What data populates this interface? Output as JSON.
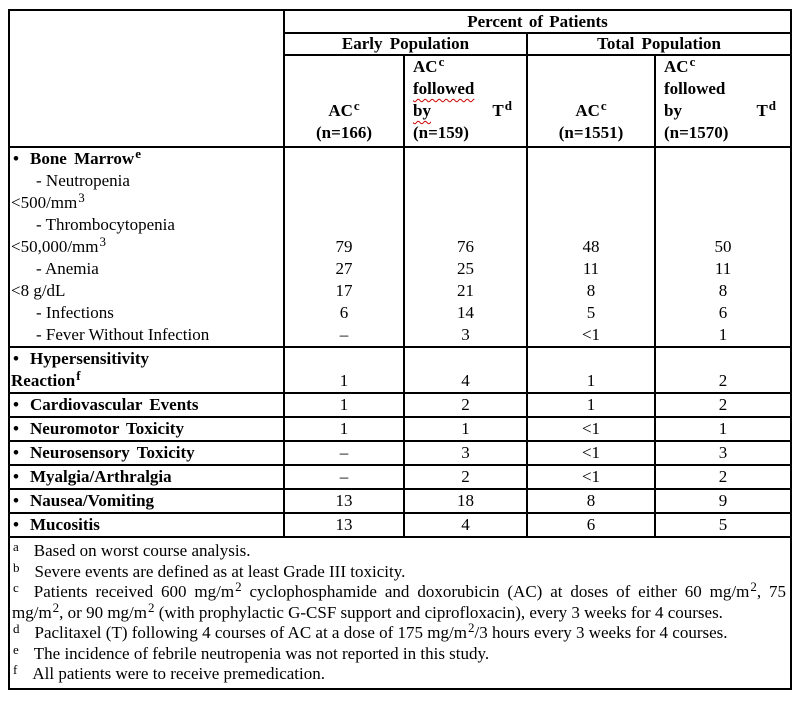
{
  "document": {
    "background": "#ffffff",
    "text_color": "#000000",
    "border_color": "#000000",
    "squiggle_color": "#cc0000"
  },
  "table": {
    "header": {
      "percent_title": "Percent of Patients",
      "groups": [
        {
          "label": "Early Population"
        },
        {
          "label": "Total Population"
        }
      ],
      "columns": [
        {
          "align": "center",
          "lines": [
            {
              "t": "AC^{c}"
            },
            {
              "t": "(n=166)"
            }
          ]
        },
        {
          "align": "left",
          "lines": [
            {
              "t": "AC^{c}"
            },
            {
              "t": "followed",
              "sq": true
            },
            {
              "t": "by",
              "sq": true,
              "right": "T^{d}"
            },
            {
              "t": "(n=159)"
            }
          ]
        },
        {
          "align": "center",
          "lines": [
            {
              "t": "AC^{c}"
            },
            {
              "t": "(n=1551)"
            }
          ]
        },
        {
          "align": "left",
          "lines": [
            {
              "t": "AC^{c}"
            },
            {
              "t": "followed"
            },
            {
              "t": "by",
              "right": "T^{d}"
            },
            {
              "t": "(n=1570)"
            }
          ]
        }
      ]
    },
    "sections": [
      {
        "name": "bone-marrow",
        "label_lines": [
          {
            "t": "Bone Marrow^{e}",
            "style": "bullet"
          },
          {
            "t": "- Neutropenia",
            "style": "indent"
          },
          {
            "t": "<500/mm^{3}",
            "style": "flush"
          },
          {
            "t": "- Thrombocytopenia",
            "style": "indent"
          },
          {
            "t": "<50,000/mm^{3}",
            "style": "flush"
          },
          {
            "t": "- Anemia",
            "style": "indent"
          },
          {
            "t": "<8 g/dL",
            "style": "flush"
          },
          {
            "t": "- Infections",
            "style": "indent"
          },
          {
            "t": "- Fever Without Infection",
            "style": "indent"
          }
        ],
        "values": [
          [
            "",
            "",
            "",
            "",
            "79",
            "27",
            "17",
            "6",
            "–"
          ],
          [
            "",
            "",
            "",
            "",
            "76",
            "25",
            "21",
            "14",
            "3"
          ],
          [
            "",
            "",
            "",
            "",
            "48",
            "11",
            "8",
            "5",
            "<1"
          ],
          [
            "",
            "",
            "",
            "",
            "50",
            "11",
            "8",
            "6",
            "1"
          ]
        ]
      },
      {
        "name": "hypersensitivity-reaction",
        "label_lines": [
          {
            "t": "Hypersensitivity",
            "style": "bullet"
          },
          {
            "t": "Reaction^{f}",
            "style": "flush-bold"
          }
        ],
        "values": [
          [
            "",
            "1"
          ],
          [
            "",
            "4"
          ],
          [
            "",
            "1"
          ],
          [
            "",
            "2"
          ]
        ]
      },
      {
        "name": "cardiovascular-events",
        "label_lines": [
          {
            "t": "Cardiovascular Events",
            "style": "bullet"
          }
        ],
        "values": [
          [
            "1"
          ],
          [
            "2"
          ],
          [
            "1"
          ],
          [
            "2"
          ]
        ]
      },
      {
        "name": "neuromotor-toxicity",
        "label_lines": [
          {
            "t": "Neuromotor Toxicity",
            "style": "bullet"
          }
        ],
        "values": [
          [
            "1"
          ],
          [
            "1"
          ],
          [
            "<1"
          ],
          [
            "1"
          ]
        ]
      },
      {
        "name": "neurosensory-toxicity",
        "label_lines": [
          {
            "t": "Neurosensory Toxicity",
            "style": "bullet"
          }
        ],
        "values": [
          [
            "–"
          ],
          [
            "3"
          ],
          [
            "<1"
          ],
          [
            "3"
          ]
        ]
      },
      {
        "name": "myalgia-arthralgia",
        "label_lines": [
          {
            "t": "Myalgia/Arthralgia",
            "style": "bullet"
          }
        ],
        "values": [
          [
            "–"
          ],
          [
            "2"
          ],
          [
            "<1"
          ],
          [
            "2"
          ]
        ]
      },
      {
        "name": "nausea-vomiting",
        "label_lines": [
          {
            "t": "Nausea/Vomiting",
            "style": "bullet"
          }
        ],
        "values": [
          [
            "13"
          ],
          [
            "18"
          ],
          [
            "8"
          ],
          [
            "9"
          ]
        ]
      },
      {
        "name": "mucositis",
        "label_lines": [
          {
            "t": "Mucositis",
            "style": "bullet"
          }
        ],
        "values": [
          [
            "13"
          ],
          [
            "4"
          ],
          [
            "6"
          ],
          [
            "5"
          ]
        ]
      }
    ],
    "footnotes": [
      {
        "marker": "a",
        "text": "Based on worst course analysis."
      },
      {
        "marker": "b",
        "text": "Severe events are defined as at least Grade III toxicity."
      },
      {
        "marker": "c",
        "text": "Patients received 600 mg/m^{2} cyclophosphamide and doxorubicin (AC) at doses of either 60 mg/m^{2}, 75 mg/m^{2}, or 90 mg/m^{2} (with prophylactic G-CSF support and ciprofloxacin), every 3 weeks for 4 courses."
      },
      {
        "marker": "d",
        "text": "Paclitaxel (T) following 4 courses of AC at a dose of 175 mg/m^{2}/3 hours every 3 weeks for 4 courses."
      },
      {
        "marker": "e",
        "text": "The incidence of febrile neutropenia was not reported in this study."
      },
      {
        "marker": "f",
        "text": "All patients were to receive premedication."
      }
    ]
  }
}
